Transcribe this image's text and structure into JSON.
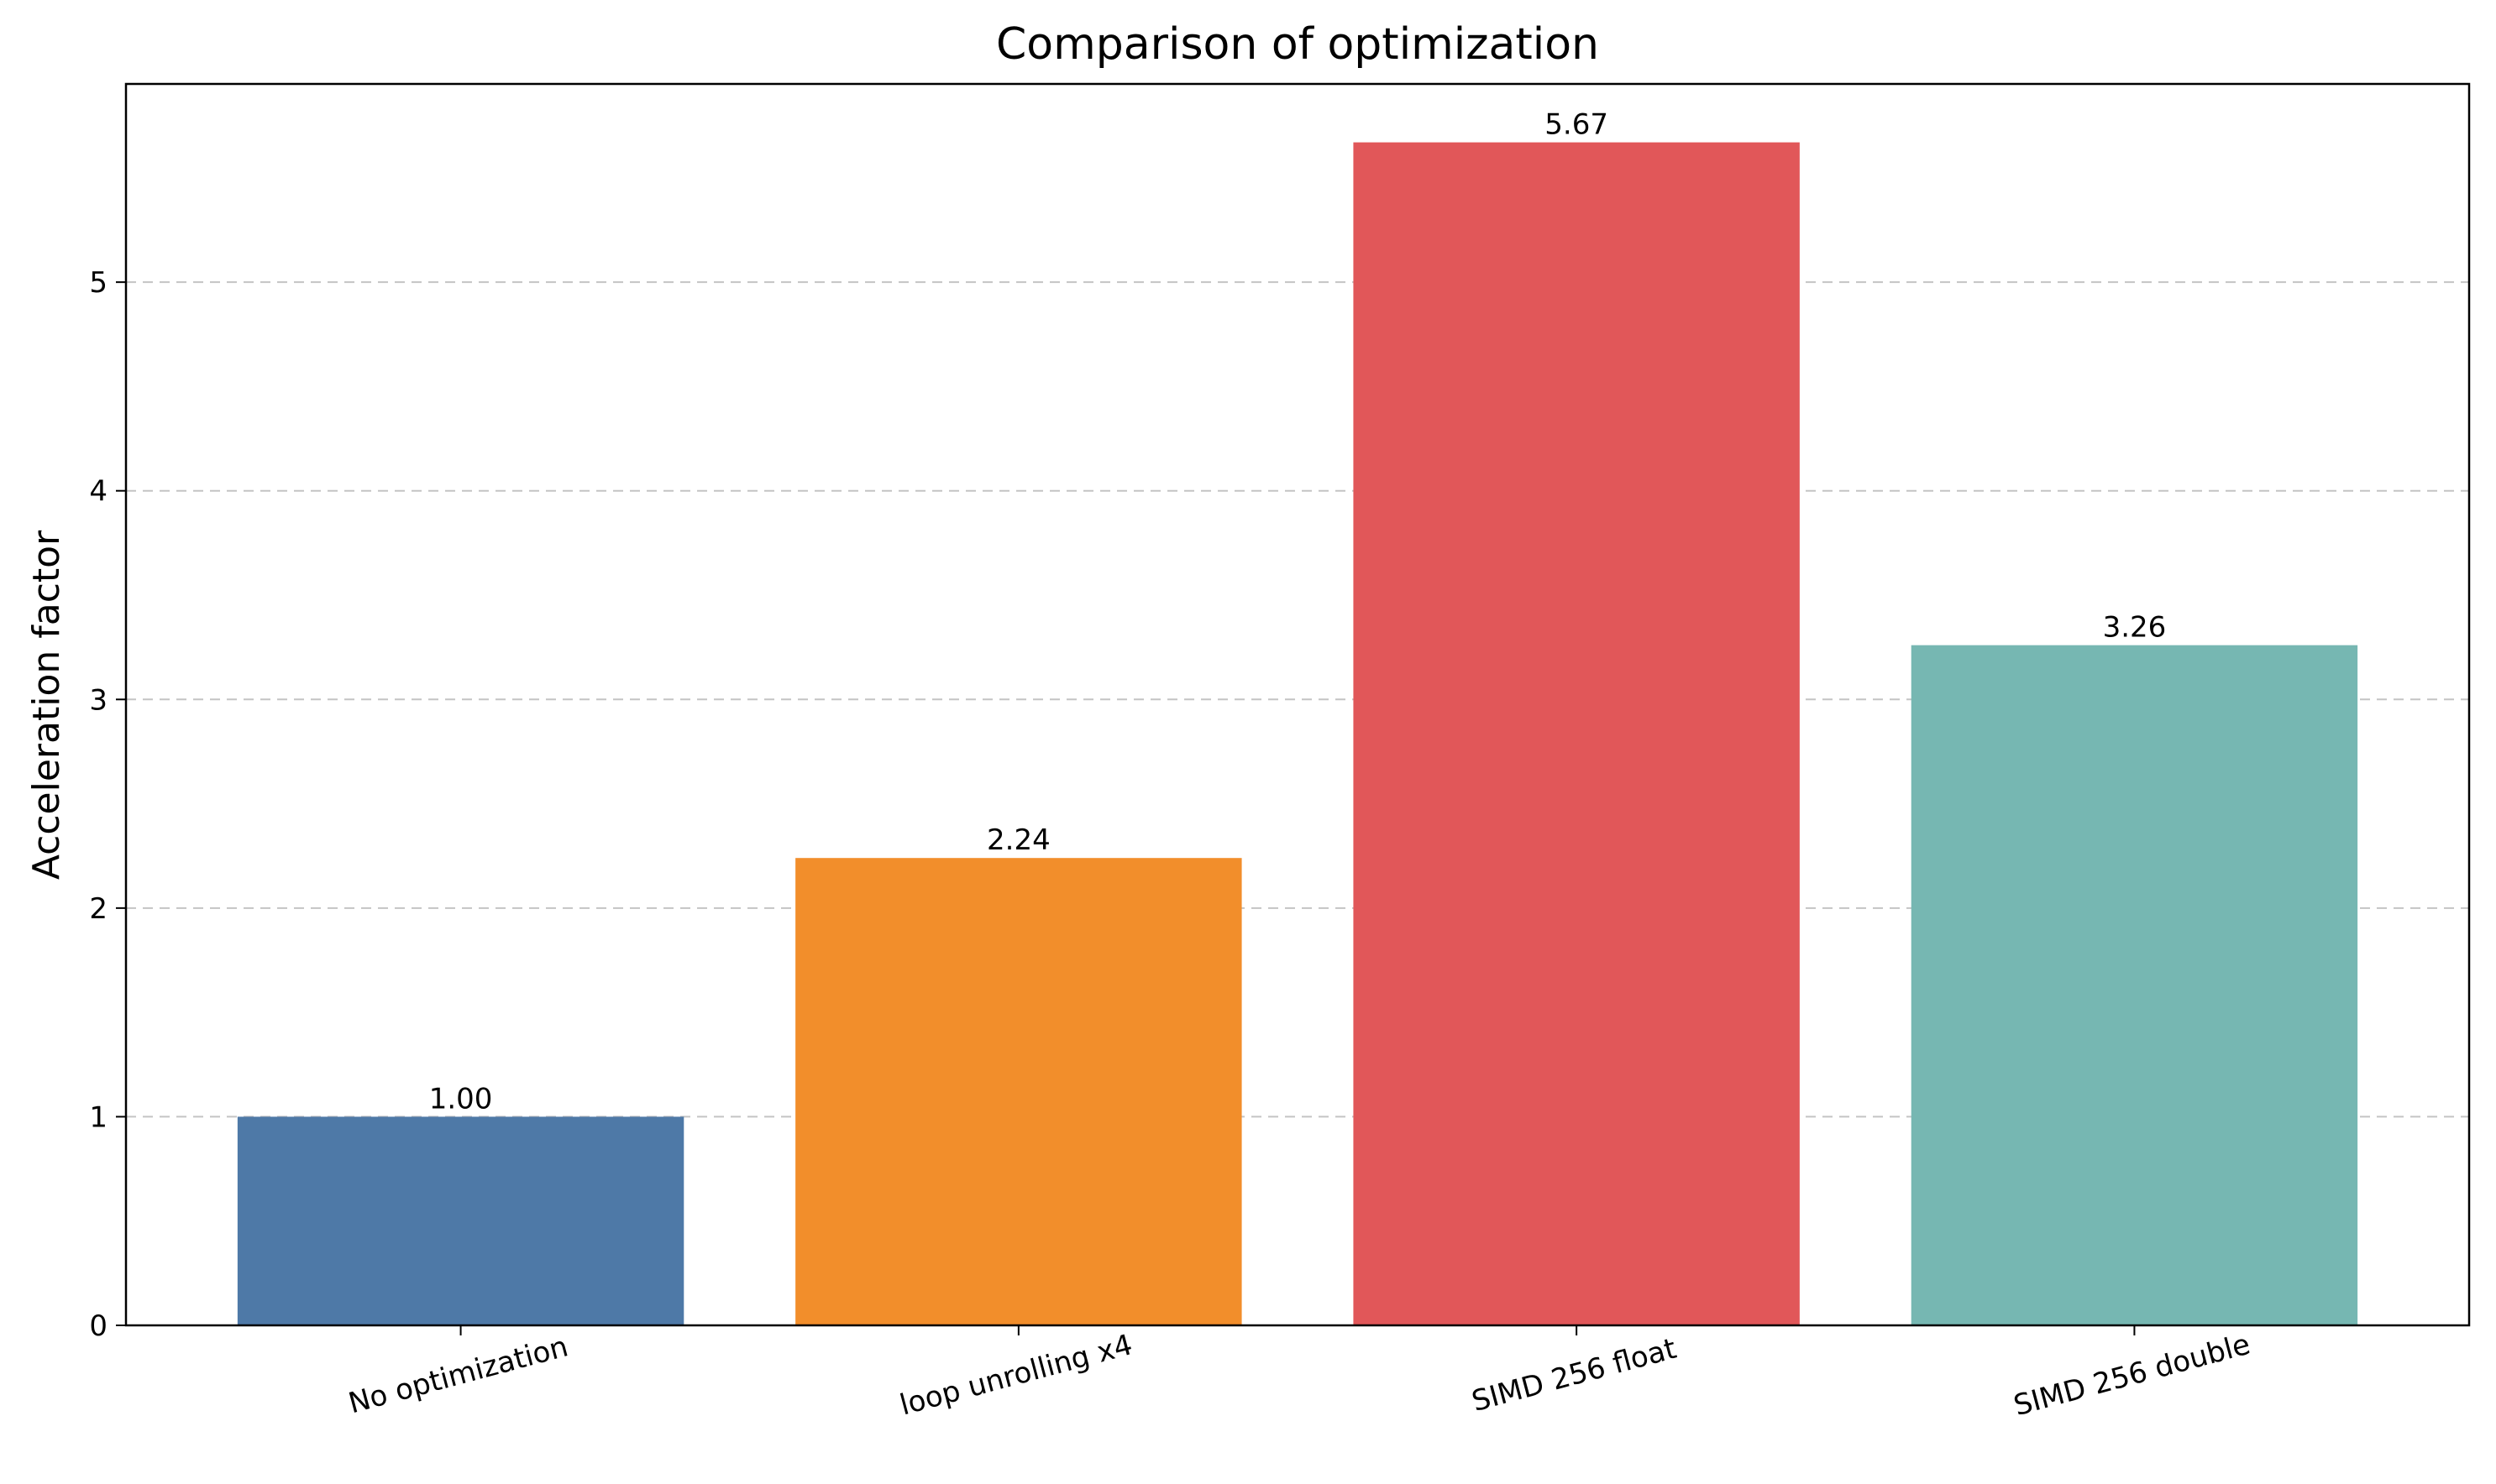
{
  "chart_data": {
    "type": "bar",
    "title": "Comparison of optimization",
    "xlabel": "",
    "ylabel": "Acceleration factor",
    "categories": [
      "No optimization",
      "loop unrolling x4",
      "SIMD 256 float",
      "SIMD 256 double"
    ],
    "values": [
      1.0,
      2.24,
      5.67,
      3.26
    ],
    "value_labels": [
      "1.00",
      "2.24",
      "5.67",
      "3.26"
    ],
    "colors": [
      "#4e79a7",
      "#f28e2b",
      "#e15759",
      "#76b7b2"
    ],
    "ylim": [
      0,
      5.95
    ],
    "yticks": [
      0,
      1,
      2,
      3,
      4,
      5
    ],
    "ytick_labels": [
      "0",
      "1",
      "2",
      "3",
      "4",
      "5"
    ],
    "grid": "y-dashed",
    "legend": "none",
    "xtick_rotation_deg": 15
  }
}
